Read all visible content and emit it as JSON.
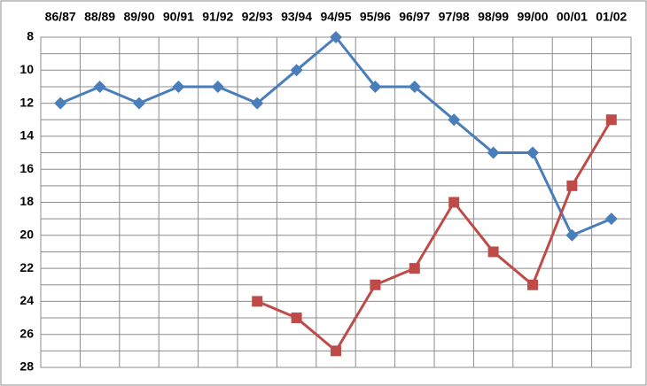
{
  "chart_data": {
    "type": "line",
    "categories": [
      "86/87",
      "88/89",
      "89/90",
      "90/91",
      "91/92",
      "92/93",
      "93/94",
      "94/95",
      "95/96",
      "96/97",
      "97/98",
      "98/99",
      "99/00",
      "00/01",
      "01/02"
    ],
    "series": [
      {
        "color": "#4a7ebb",
        "marker": "diamond",
        "values": [
          12,
          11,
          12,
          11,
          11,
          12,
          10,
          8,
          11,
          11,
          13,
          15,
          15,
          20,
          19
        ]
      },
      {
        "color": "#be4b48",
        "marker": "square",
        "values": [
          null,
          null,
          null,
          null,
          null,
          24,
          25,
          27,
          23,
          22,
          18,
          21,
          23,
          17,
          13
        ]
      }
    ],
    "ylim": [
      8,
      28
    ],
    "y_inverted": true,
    "yticks": [
      8,
      10,
      12,
      14,
      16,
      18,
      20,
      22,
      24,
      26,
      28
    ],
    "grid": true
  }
}
